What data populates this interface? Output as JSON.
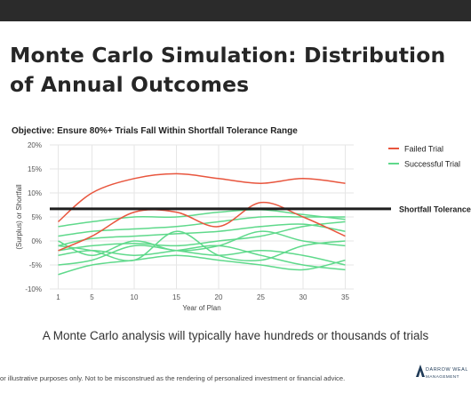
{
  "title_line1": "Monte Carlo Simulation: Distribution",
  "title_line2": "of Annual Outcomes",
  "caption": "A Monte Carlo analysis will typically have hundreds or thousands of trials",
  "disclaimer": "or illustrative purposes only. Not to be misconstrued as the rendering of personalized investment or financial advice.",
  "logo": {
    "line1": "DARROW WEAL",
    "line2": "MANAGEMENT",
    "icon": "triangle-logo-icon"
  },
  "colors": {
    "failed": "#e8553d",
    "successful": "#5fd98b",
    "tolerance": "#1e1e1e",
    "grid": "#e6e6e6"
  },
  "chart_data": {
    "type": "line",
    "title": "Objective: Ensure 80%+ Trials Fall Within Shortfall Tolerance Range",
    "xlabel": "Year of Plan",
    "ylabel": "(Surplus) or Shortfall",
    "xlim": [
      0,
      36
    ],
    "ylim": [
      -10,
      20
    ],
    "x_ticks": [
      1,
      5,
      10,
      15,
      20,
      25,
      30,
      35
    ],
    "y_ticks": [
      -10,
      -5,
      0,
      5,
      10,
      15,
      20
    ],
    "y_tick_labels": [
      "-10%",
      "-5%",
      "0%",
      "5%",
      "10%",
      "15%",
      "20%"
    ],
    "grid": true,
    "legend_position": "top-right",
    "legend": [
      {
        "label": "Failed Trial",
        "color": "#e8553d"
      },
      {
        "label": "Successful Trial",
        "color": "#5fd98b"
      }
    ],
    "reference_line": {
      "label": "Shortfall Tolerance",
      "y": 6.7
    },
    "series": [
      {
        "group": "failed",
        "x": [
          1,
          5,
          10,
          15,
          20,
          25,
          30,
          35
        ],
        "y": [
          4,
          10,
          13,
          14,
          13,
          12,
          13,
          12
        ]
      },
      {
        "group": "failed",
        "x": [
          1,
          5,
          10,
          15,
          20,
          25,
          30,
          35
        ],
        "y": [
          -2,
          1,
          6,
          6,
          3,
          8,
          5,
          1
        ]
      },
      {
        "group": "successful",
        "x": [
          1,
          5,
          10,
          15,
          20,
          25,
          30,
          35
        ],
        "y": [
          3,
          4,
          5,
          5,
          6,
          6.5,
          5.5,
          4.5
        ]
      },
      {
        "group": "successful",
        "x": [
          1,
          5,
          10,
          15,
          20,
          25,
          30,
          35
        ],
        "y": [
          1,
          2,
          2.5,
          3,
          4,
          5,
          5,
          5
        ]
      },
      {
        "group": "successful",
        "x": [
          1,
          5,
          10,
          15,
          20,
          25,
          30,
          35
        ],
        "y": [
          -1,
          0.5,
          1,
          1.5,
          2,
          3,
          3.5,
          2
        ]
      },
      {
        "group": "successful",
        "x": [
          1,
          5,
          10,
          15,
          20,
          25,
          30,
          35
        ],
        "y": [
          -2,
          -1,
          -0.5,
          -1,
          0,
          1,
          3,
          4
        ]
      },
      {
        "group": "successful",
        "x": [
          1,
          5,
          10,
          15,
          20,
          25,
          30,
          35
        ],
        "y": [
          -1,
          -2,
          -4,
          2,
          -3,
          -4,
          -1,
          0
        ]
      },
      {
        "group": "successful",
        "x": [
          1,
          5,
          10,
          15,
          20,
          25,
          30,
          35
        ],
        "y": [
          0,
          -3,
          0,
          -2,
          -1,
          2,
          0,
          -1
        ]
      },
      {
        "group": "successful",
        "x": [
          1,
          5,
          10,
          15,
          20,
          25,
          30,
          35
        ],
        "y": [
          -5,
          -4,
          -1,
          -2,
          -3,
          -2,
          -3,
          -5
        ]
      },
      {
        "group": "successful",
        "x": [
          1,
          5,
          10,
          15,
          20,
          25,
          30,
          35
        ],
        "y": [
          -7,
          -5,
          -4,
          -3,
          -4,
          -5,
          -6,
          -4
        ]
      },
      {
        "group": "successful",
        "x": [
          1,
          5,
          10,
          15,
          20,
          25,
          30,
          35
        ],
        "y": [
          -3,
          -2,
          -3,
          -2,
          -1,
          -3,
          -5,
          -6
        ]
      }
    ]
  }
}
